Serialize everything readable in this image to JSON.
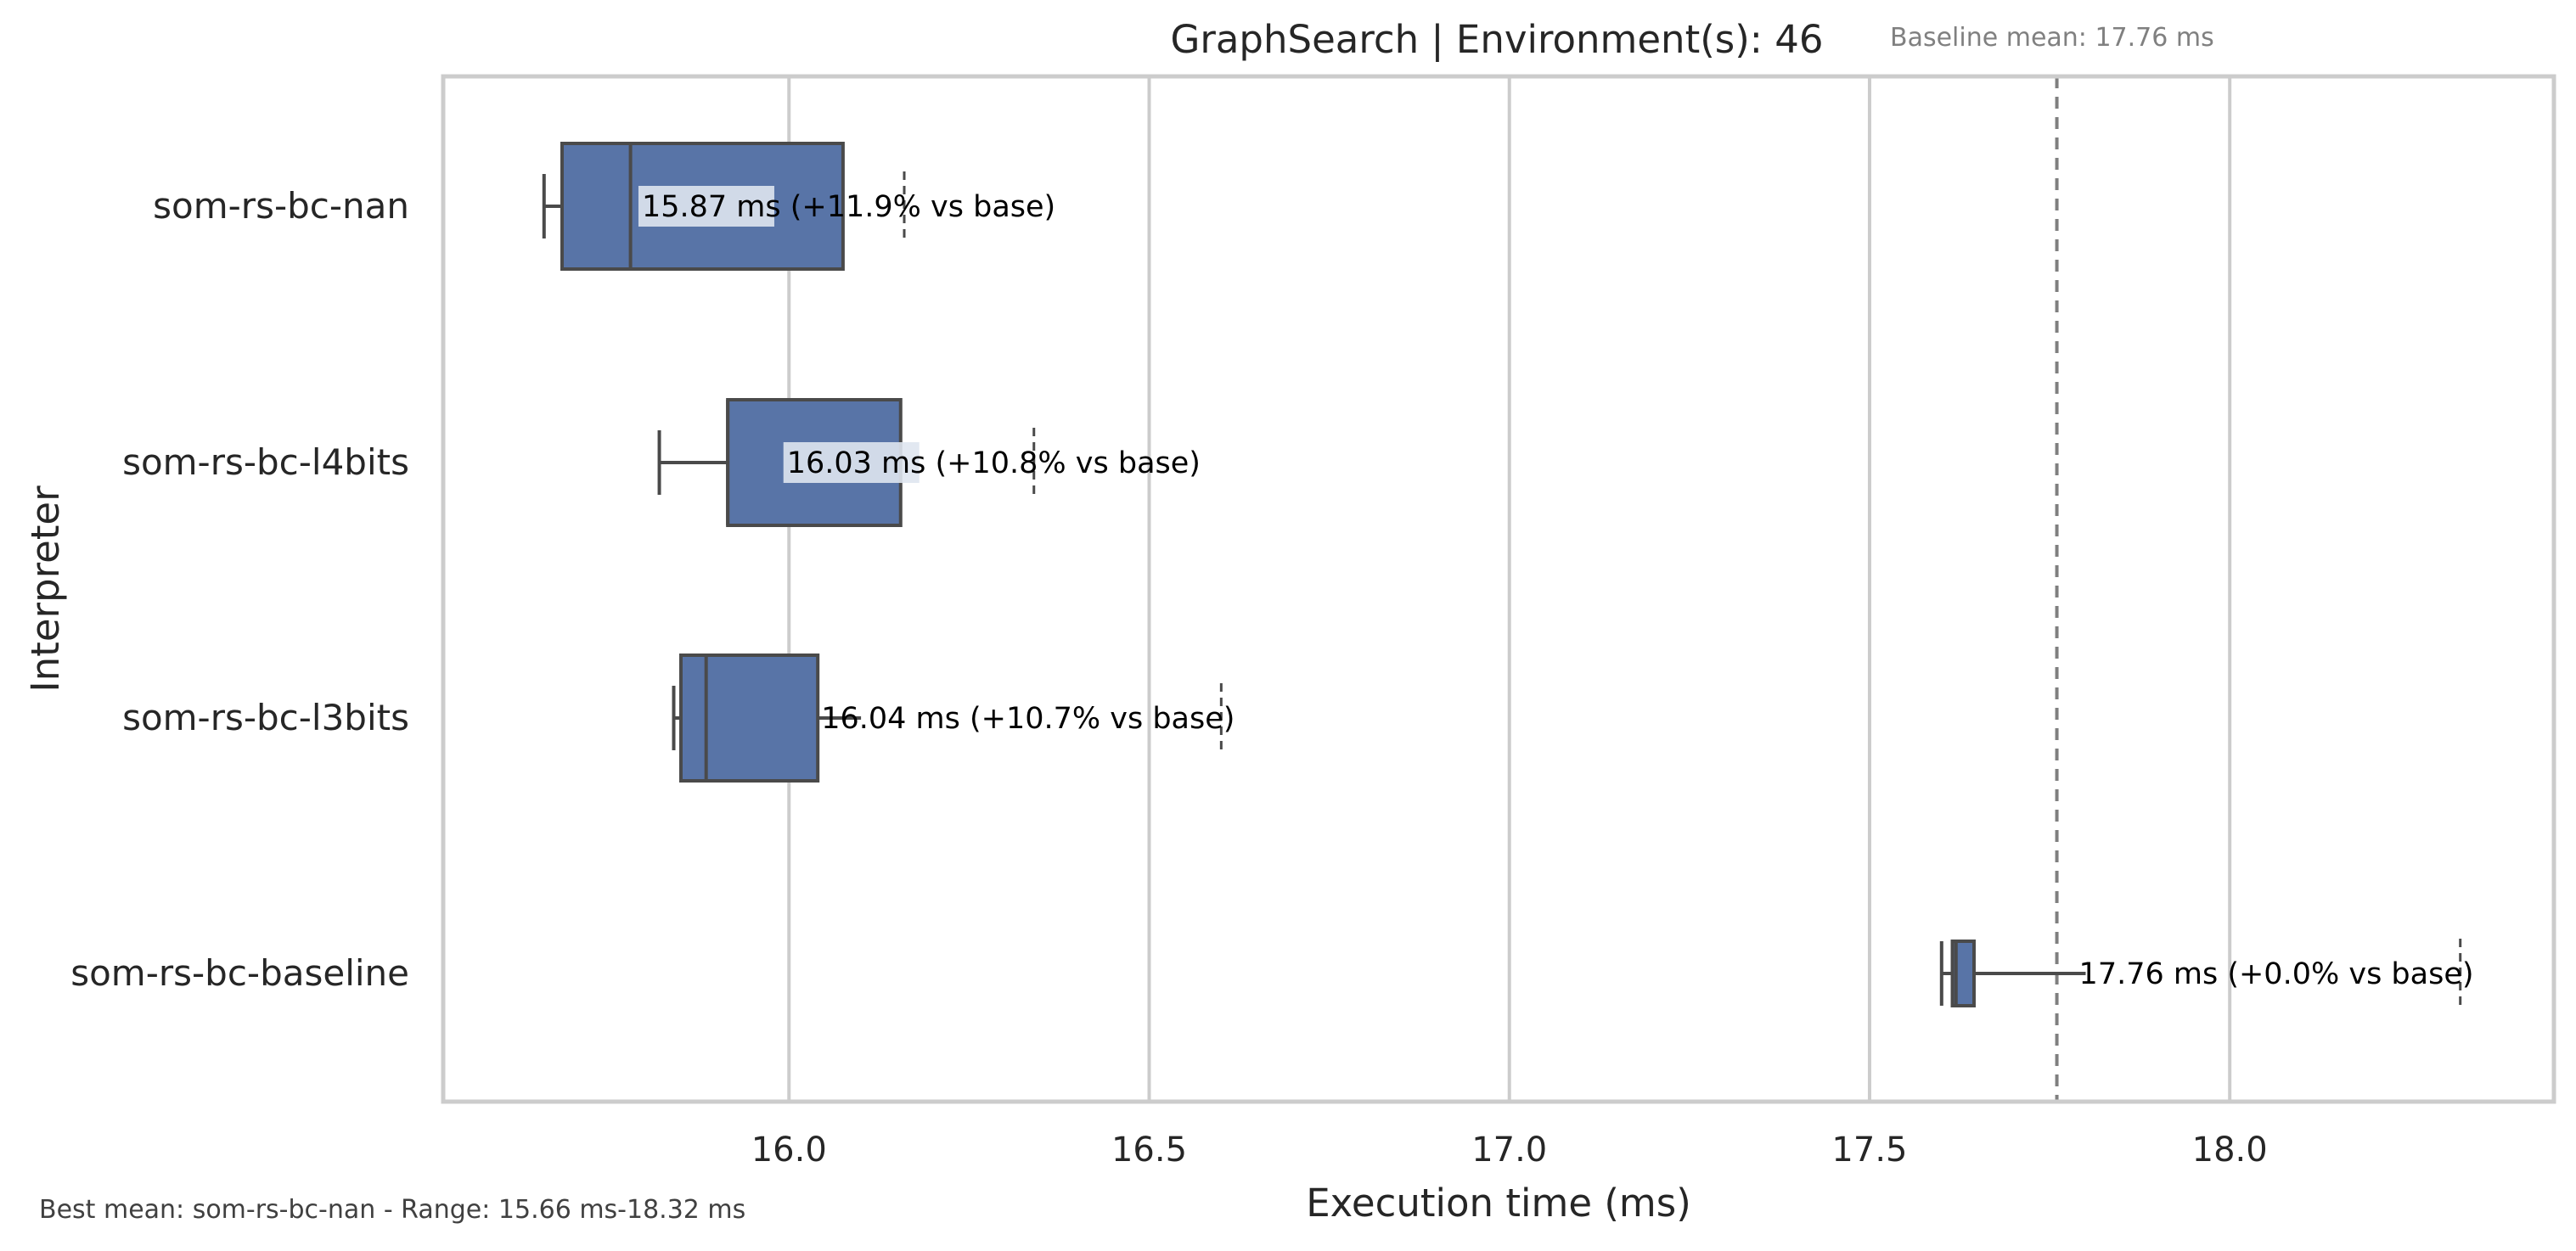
{
  "chart_data": {
    "type": "boxplot",
    "orientation": "horizontal",
    "title": "GraphSearch | Environment(s): 46",
    "baseline_note": "Baseline mean: 17.76 ms",
    "baseline_mean": 17.76,
    "xlabel": "Execution time (ms)",
    "ylabel": "Interpreter",
    "xlim": [
      15.52,
      18.45
    ],
    "xticks": [
      16.0,
      16.5,
      17.0,
      17.5,
      18.0
    ],
    "xtick_labels": [
      "16.0",
      "16.5",
      "17.0",
      "17.5",
      "18.0"
    ],
    "grid": "vertical",
    "box_color": "#5874a7",
    "edge_color": "#4a4a4a",
    "footnote": "Best mean: som-rs-bc-nan - Range: 15.66 ms-18.32 ms",
    "series": [
      {
        "name": "som-rs-bc-nan",
        "whisker_low": 15.66,
        "q1": 15.685,
        "median": 15.78,
        "q3": 16.075,
        "whisker_high": 16.075,
        "mean": 15.87,
        "max": 16.16,
        "label": "15.87 ms  (+11.9% vs base)"
      },
      {
        "name": "som-rs-bc-l4bits",
        "whisker_low": 15.82,
        "q1": 15.915,
        "median": 15.915,
        "q3": 16.155,
        "whisker_high": 16.155,
        "mean": 16.03,
        "max": 16.34,
        "label": "16.03 ms  (+10.8% vs base)"
      },
      {
        "name": "som-rs-bc-l3bits",
        "whisker_low": 15.84,
        "q1": 15.85,
        "median": 15.885,
        "q3": 16.04,
        "whisker_high": 16.1,
        "mean": 16.04,
        "max": 16.6,
        "label": "16.04 ms  (+10.7% vs base)"
      },
      {
        "name": "som-rs-bc-baseline",
        "whisker_low": 17.6,
        "q1": 17.615,
        "median": 17.62,
        "q3": 17.645,
        "whisker_high": 17.8,
        "mean": 17.76,
        "max": 18.32,
        "label": "17.76 ms  (+0.0% vs base)"
      }
    ]
  }
}
